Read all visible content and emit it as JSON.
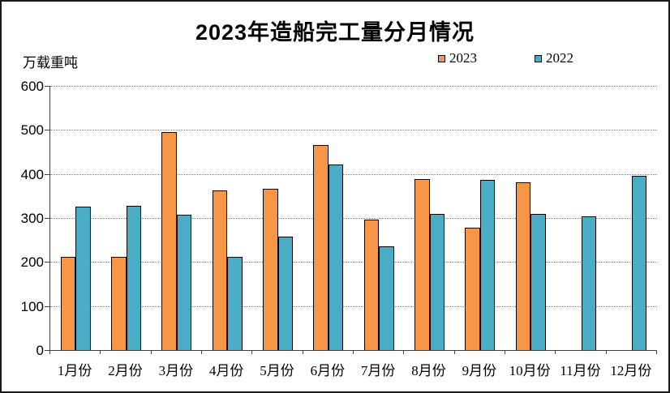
{
  "title": "2023年造船完工量分月情况",
  "y_unit_label": "万载重吨",
  "chart_data": {
    "type": "bar",
    "title": "2023年造船完工量分月情况",
    "ylabel": "万载重吨",
    "xlabel": "",
    "categories": [
      "1月份",
      "2月份",
      "3月份",
      "4月份",
      "5月份",
      "6月份",
      "7月份",
      "8月份",
      "9月份",
      "10月份",
      "11月份",
      "12月份"
    ],
    "series": [
      {
        "name": "2023",
        "color": "#F79646",
        "values": [
          211,
          211,
          495,
          363,
          367,
          466,
          296,
          389,
          277,
          381,
          null,
          null
        ]
      },
      {
        "name": "2022",
        "color": "#4BACC6",
        "values": [
          326,
          328,
          308,
          211,
          257,
          422,
          236,
          310,
          386,
          309,
          304,
          396
        ]
      }
    ],
    "ylim": [
      0,
      600
    ],
    "yticks": [
      0,
      100,
      200,
      300,
      400,
      500,
      600
    ],
    "grid": "horizontal-dotted",
    "legend_position": "top",
    "bar_border_color": "#000000",
    "axis_color": "#3f3f3f"
  }
}
